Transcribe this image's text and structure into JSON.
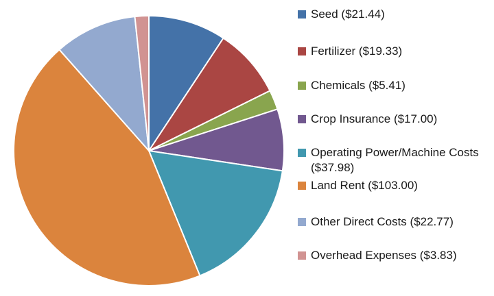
{
  "chart_data": {
    "type": "pie",
    "title": "",
    "labels": [
      "Seed ($21.44)",
      "Fertilizer ($19.33)",
      "Chemicals ($5.41)",
      "Crop Insurance ($17.00)",
      "Operating Power/Machine Costs ($37.98)",
      "Land Rent ($103.00)",
      "Other Direct Costs ($22.77)",
      "Overhead Expenses ($3.83)"
    ],
    "values": [
      21.44,
      19.33,
      5.41,
      17.0,
      37.98,
      103.0,
      22.77,
      3.83
    ],
    "colors": [
      "#4472A8",
      "#AA4643",
      "#89A54E",
      "#71588F",
      "#4198AF",
      "#DB843D",
      "#93A9CF",
      "#D19392"
    ],
    "legend_position": "right",
    "start_angle_deg": 0,
    "direction": "clockwise"
  }
}
